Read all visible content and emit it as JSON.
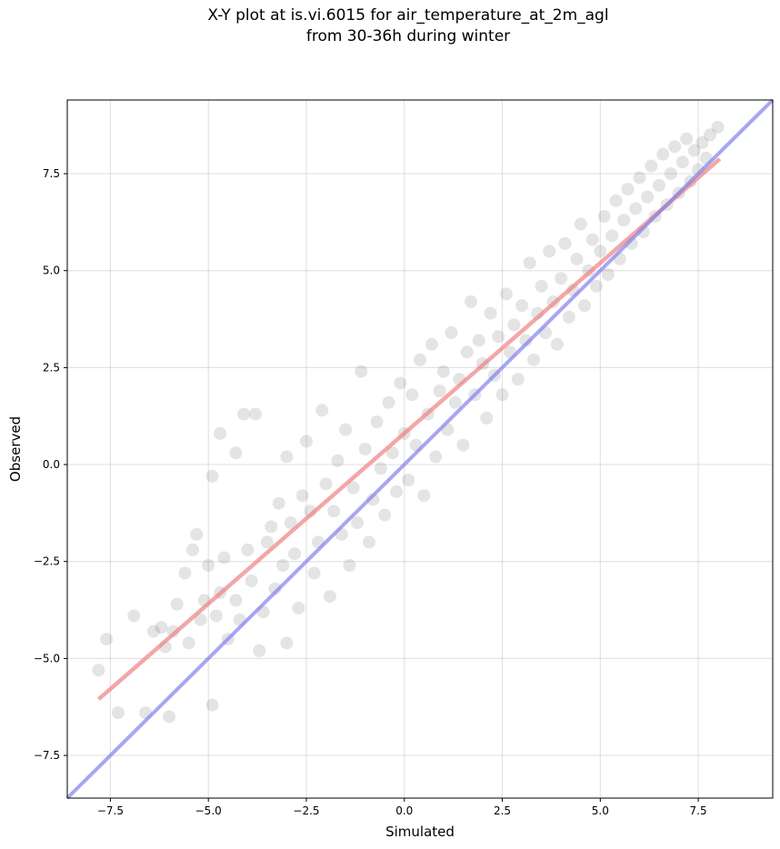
{
  "chart_data": {
    "type": "scatter",
    "title_line1": "X-Y plot at is.vi.6015 for air_temperature_at_2m_agl",
    "title_line2": "from 30-36h during winter",
    "xlabel": "Simulated",
    "ylabel": "Observed",
    "xlim": [
      -8.6,
      9.4
    ],
    "ylim": [
      -8.6,
      9.4
    ],
    "xticks": [
      -7.5,
      -5.0,
      -2.5,
      0.0,
      2.5,
      5.0,
      7.5
    ],
    "yticks": [
      -7.5,
      -5.0,
      -2.5,
      0.0,
      2.5,
      5.0,
      7.5
    ],
    "xtick_labels": [
      "−7.5",
      "−5.0",
      "−2.5",
      "0.0",
      "2.5",
      "5.0",
      "7.5"
    ],
    "ytick_labels": [
      "−7.5",
      "−5.0",
      "−2.5",
      "0.0",
      "2.5",
      "5.0",
      "7.5"
    ],
    "grid": true,
    "point_color": "#555555",
    "regression_line": {
      "color": "#f08080",
      "x": [
        -7.8,
        8.05
      ],
      "y": [
        -6.05,
        7.88
      ]
    },
    "identity_line": {
      "color": "#8080f0",
      "x": [
        -8.6,
        9.4
      ],
      "y": [
        -8.6,
        9.4
      ]
    },
    "points": [
      [
        -7.8,
        -5.3
      ],
      [
        -7.6,
        -4.5
      ],
      [
        -7.3,
        -6.4
      ],
      [
        -6.9,
        -3.9
      ],
      [
        -6.6,
        -6.4
      ],
      [
        -6.4,
        -4.3
      ],
      [
        -6.2,
        -4.2
      ],
      [
        -6.1,
        -4.7
      ],
      [
        -6.0,
        -6.5
      ],
      [
        -5.9,
        -4.3
      ],
      [
        -5.8,
        -3.6
      ],
      [
        -5.6,
        -2.8
      ],
      [
        -5.5,
        -4.6
      ],
      [
        -5.4,
        -2.2
      ],
      [
        -5.3,
        -1.8
      ],
      [
        -5.2,
        -4.0
      ],
      [
        -5.1,
        -3.5
      ],
      [
        -5.0,
        -2.6
      ],
      [
        -4.9,
        -0.3
      ],
      [
        -4.9,
        -6.2
      ],
      [
        -4.8,
        -3.9
      ],
      [
        -4.7,
        0.8
      ],
      [
        -4.7,
        -3.3
      ],
      [
        -4.6,
        -2.4
      ],
      [
        -4.5,
        -4.5
      ],
      [
        -4.3,
        0.3
      ],
      [
        -4.3,
        -3.5
      ],
      [
        -4.2,
        -4.0
      ],
      [
        -4.1,
        1.3
      ],
      [
        -4.0,
        -2.2
      ],
      [
        -3.9,
        -3.0
      ],
      [
        -3.8,
        1.3
      ],
      [
        -3.7,
        -4.8
      ],
      [
        -3.6,
        -3.8
      ],
      [
        -3.5,
        -2.0
      ],
      [
        -3.4,
        -1.6
      ],
      [
        -3.3,
        -3.2
      ],
      [
        -3.2,
        -1.0
      ],
      [
        -3.1,
        -2.6
      ],
      [
        -3.0,
        -4.6
      ],
      [
        -3.0,
        0.2
      ],
      [
        -2.9,
        -1.5
      ],
      [
        -2.8,
        -2.3
      ],
      [
        -2.7,
        -3.7
      ],
      [
        -2.6,
        -0.8
      ],
      [
        -2.5,
        0.6
      ],
      [
        -2.4,
        -1.2
      ],
      [
        -2.3,
        -2.8
      ],
      [
        -2.2,
        -2.0
      ],
      [
        -2.1,
        1.4
      ],
      [
        -2.0,
        -0.5
      ],
      [
        -1.9,
        -3.4
      ],
      [
        -1.8,
        -1.2
      ],
      [
        -1.7,
        0.1
      ],
      [
        -1.6,
        -1.8
      ],
      [
        -1.5,
        0.9
      ],
      [
        -1.4,
        -2.6
      ],
      [
        -1.3,
        -0.6
      ],
      [
        -1.2,
        -1.5
      ],
      [
        -1.1,
        2.4
      ],
      [
        -1.0,
        0.4
      ],
      [
        -0.9,
        -2.0
      ],
      [
        -0.8,
        -0.9
      ],
      [
        -0.7,
        1.1
      ],
      [
        -0.6,
        -0.1
      ],
      [
        -0.5,
        -1.3
      ],
      [
        -0.4,
        1.6
      ],
      [
        -0.3,
        0.3
      ],
      [
        -0.2,
        -0.7
      ],
      [
        -0.1,
        2.1
      ],
      [
        0.0,
        0.8
      ],
      [
        0.1,
        -0.4
      ],
      [
        0.2,
        1.8
      ],
      [
        0.3,
        0.5
      ],
      [
        0.4,
        2.7
      ],
      [
        0.5,
        -0.8
      ],
      [
        0.6,
        1.3
      ],
      [
        0.7,
        3.1
      ],
      [
        0.8,
        0.2
      ],
      [
        0.9,
        1.9
      ],
      [
        1.0,
        2.4
      ],
      [
        1.1,
        0.9
      ],
      [
        1.2,
        3.4
      ],
      [
        1.3,
        1.6
      ],
      [
        1.4,
        2.2
      ],
      [
        1.5,
        0.5
      ],
      [
        1.6,
        2.9
      ],
      [
        1.7,
        4.2
      ],
      [
        1.8,
        1.8
      ],
      [
        1.9,
        3.2
      ],
      [
        2.0,
        2.6
      ],
      [
        2.1,
        1.2
      ],
      [
        2.2,
        3.9
      ],
      [
        2.3,
        2.3
      ],
      [
        2.4,
        3.3
      ],
      [
        2.5,
        1.8
      ],
      [
        2.6,
        4.4
      ],
      [
        2.7,
        2.9
      ],
      [
        2.8,
        3.6
      ],
      [
        2.9,
        2.2
      ],
      [
        3.0,
        4.1
      ],
      [
        3.1,
        3.2
      ],
      [
        3.2,
        5.2
      ],
      [
        3.3,
        2.7
      ],
      [
        3.4,
        3.9
      ],
      [
        3.5,
        4.6
      ],
      [
        3.6,
        3.4
      ],
      [
        3.7,
        5.5
      ],
      [
        3.8,
        4.2
      ],
      [
        3.9,
        3.1
      ],
      [
        4.0,
        4.8
      ],
      [
        4.1,
        5.7
      ],
      [
        4.2,
        3.8
      ],
      [
        4.3,
        4.5
      ],
      [
        4.4,
        5.3
      ],
      [
        4.5,
        6.2
      ],
      [
        4.6,
        4.1
      ],
      [
        4.7,
        5.0
      ],
      [
        4.8,
        5.8
      ],
      [
        4.9,
        4.6
      ],
      [
        5.0,
        5.5
      ],
      [
        5.1,
        6.4
      ],
      [
        5.2,
        4.9
      ],
      [
        5.3,
        5.9
      ],
      [
        5.4,
        6.8
      ],
      [
        5.5,
        5.3
      ],
      [
        5.6,
        6.3
      ],
      [
        5.7,
        7.1
      ],
      [
        5.8,
        5.7
      ],
      [
        5.9,
        6.6
      ],
      [
        6.0,
        7.4
      ],
      [
        6.1,
        6.0
      ],
      [
        6.2,
        6.9
      ],
      [
        6.3,
        7.7
      ],
      [
        6.4,
        6.4
      ],
      [
        6.5,
        7.2
      ],
      [
        6.6,
        8.0
      ],
      [
        6.7,
        6.7
      ],
      [
        6.8,
        7.5
      ],
      [
        6.9,
        8.2
      ],
      [
        7.0,
        7.0
      ],
      [
        7.1,
        7.8
      ],
      [
        7.2,
        8.4
      ],
      [
        7.3,
        7.3
      ],
      [
        7.4,
        8.1
      ],
      [
        7.5,
        7.6
      ],
      [
        7.6,
        8.3
      ],
      [
        7.7,
        7.9
      ],
      [
        7.8,
        8.5
      ],
      [
        8.0,
        8.7
      ]
    ]
  }
}
